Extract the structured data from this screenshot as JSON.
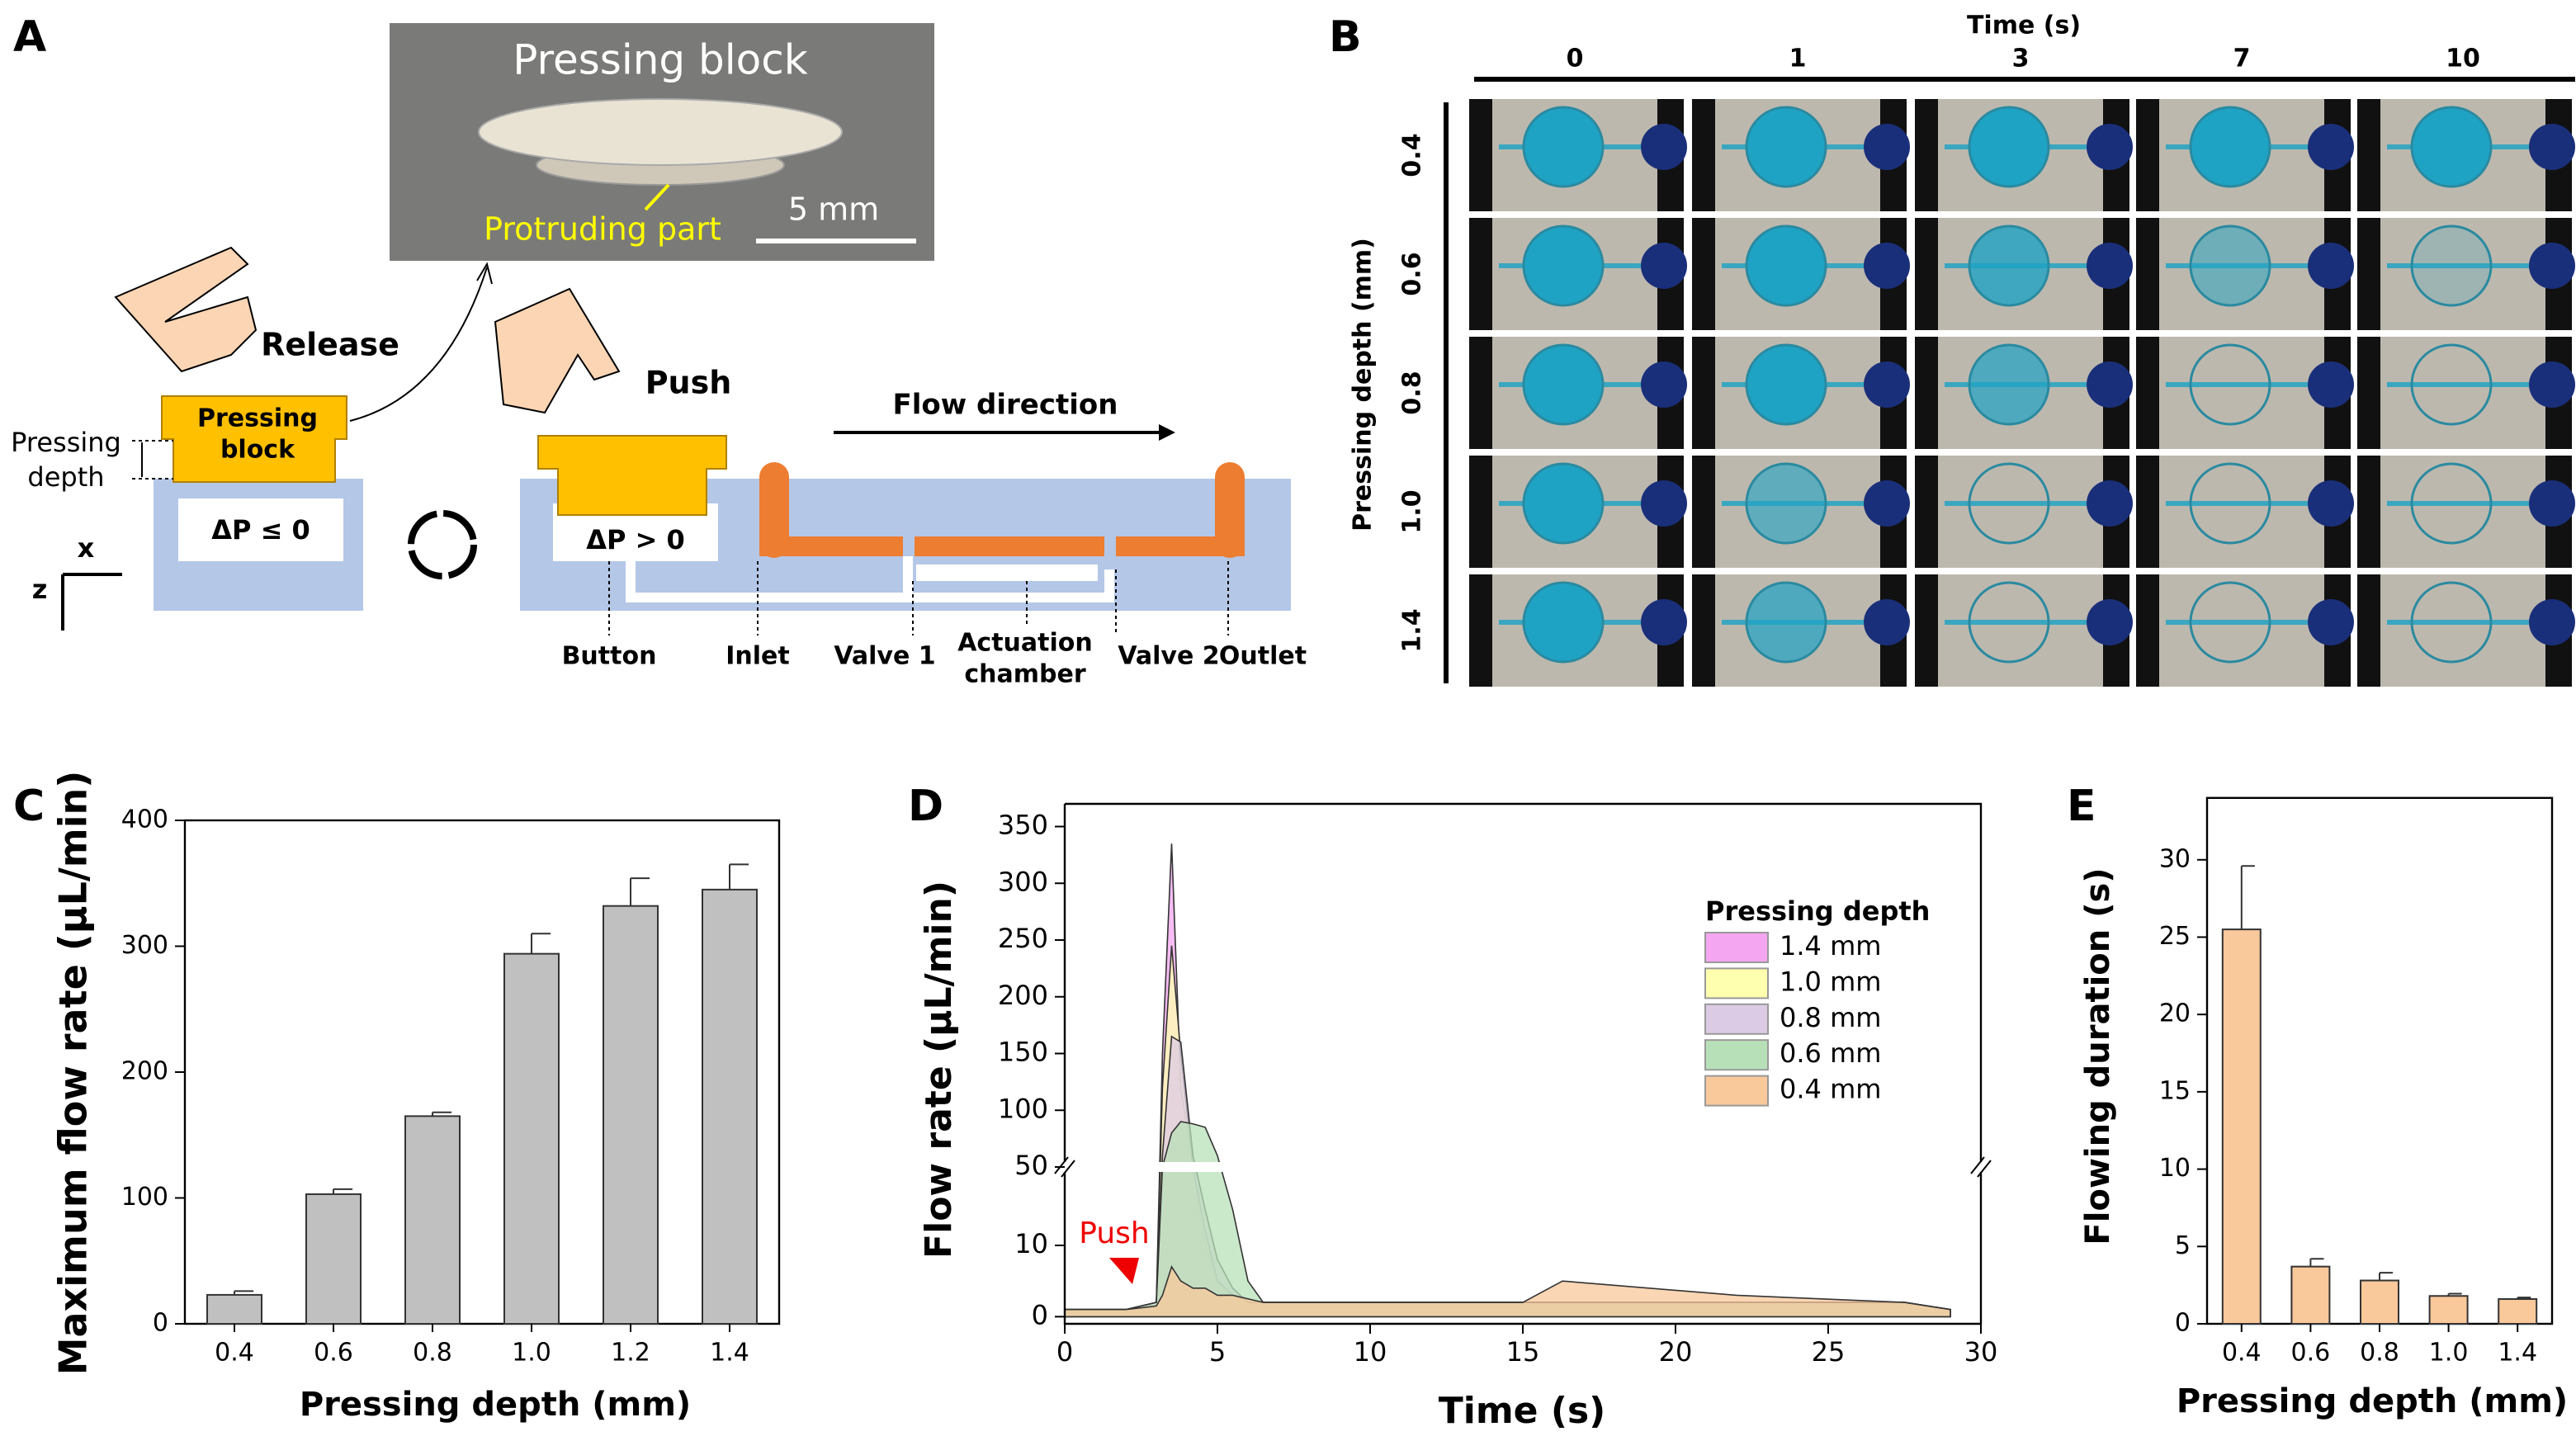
{
  "panel_labels": [
    "A",
    "B",
    "C",
    "D",
    "E"
  ],
  "diagram": {
    "photo_title": "Pressing block",
    "protruding": "Protruding part",
    "scale": "5 mm",
    "release": "Release",
    "block_label": [
      "Pressing",
      "block"
    ],
    "depth_label": [
      "Pressing",
      "depth"
    ],
    "dp_release": "ΔP ≤ 0",
    "push": "Push",
    "dp_push": "ΔP > 0",
    "flow": "Flow direction",
    "axis_x": "x",
    "axis_z": "z",
    "button": "Button",
    "inlet": "Inlet",
    "valve1": "Valve 1",
    "chamber": [
      "Actuation",
      "chamber"
    ],
    "valve2": "Valve 2",
    "outlet": "Outlet"
  },
  "photo_grid": {
    "title": "Time (s)",
    "columns": [
      "0",
      "1",
      "3",
      "7",
      "10"
    ],
    "row_title": "Pressing depth (mm)",
    "rows": [
      "0.4",
      "0.6",
      "0.8",
      "1.0",
      "1.4"
    ]
  },
  "chart_data": [
    {
      "type": "bar",
      "ylabel": "Maximum flow rate (μL/min)",
      "xlabel": "Pressing depth (mm)",
      "categories": [
        "0.4",
        "0.6",
        "0.8",
        "1.0",
        "1.2",
        "1.4"
      ],
      "values": [
        23,
        103,
        165,
        294,
        332,
        345
      ],
      "errors": [
        3,
        4,
        3,
        16,
        22,
        20
      ],
      "color": "#c0c0c0",
      "ylim": [
        0,
        400
      ],
      "yticks": [
        0,
        100,
        200,
        300,
        400
      ]
    },
    {
      "type": "area",
      "ylabel": "Flow rate (μL/min)",
      "xlabel": "Time (s)",
      "legend_title": "Pressing depth",
      "annotation": "Push",
      "x": [
        0,
        2,
        3,
        3.2,
        3.5,
        3.8,
        4.2,
        4.6,
        5,
        5.5,
        6,
        6.5,
        8,
        15,
        16.3,
        22,
        27.5,
        29
      ],
      "series": [
        {
          "name": "1.4 mm",
          "color": "#f4a6f0",
          "values": [
            1,
            1,
            2,
            150,
            335,
            120,
            30,
            10,
            5,
            3,
            2,
            2,
            2,
            2,
            2,
            2,
            2,
            1
          ]
        },
        {
          "name": "1.0 mm",
          "color": "#ffffb0",
          "values": [
            1,
            1,
            2,
            120,
            245,
            150,
            40,
            12,
            5,
            3,
            2,
            2,
            2,
            2,
            2,
            2,
            2,
            1
          ]
        },
        {
          "name": "0.8 mm",
          "color": "#dccbe4",
          "values": [
            1,
            1,
            2,
            60,
            165,
            160,
            60,
            15,
            8,
            4,
            2,
            2,
            2,
            2,
            2,
            2,
            2,
            1
          ]
        },
        {
          "name": "0.6 mm",
          "color": "#b8e0b8",
          "values": [
            1,
            1,
            2,
            30,
            80,
            90,
            88,
            85,
            60,
            15,
            5,
            2,
            2,
            2,
            2,
            2,
            2,
            1
          ]
        },
        {
          "name": "0.4 mm",
          "color": "#f9c89b",
          "values": [
            1,
            1,
            1.5,
            3,
            7,
            5,
            4,
            4,
            3,
            3,
            2.5,
            2,
            2,
            2,
            5,
            3,
            2,
            1
          ]
        }
      ],
      "xlim": [
        0,
        30
      ],
      "xticks": [
        0,
        5,
        10,
        15,
        20,
        25,
        30
      ],
      "ylim": [
        -1,
        370
      ],
      "axis_break": [
        21,
        50
      ],
      "yticks": [
        0,
        10,
        50,
        100,
        150,
        200,
        250,
        300,
        350
      ]
    },
    {
      "type": "bar",
      "ylabel": "Flowing duration (s)",
      "xlabel": "Pressing depth (mm)",
      "categories": [
        "0.4",
        "0.6",
        "0.8",
        "1.0",
        "1.4"
      ],
      "values": [
        25.5,
        3.7,
        2.8,
        1.8,
        1.6
      ],
      "errors": [
        4.1,
        0.5,
        0.5,
        0.15,
        0.1
      ],
      "color": "#f9c89b",
      "ylim": [
        0,
        34
      ],
      "yticks": [
        0,
        5,
        10,
        15,
        20,
        25,
        30
      ]
    }
  ]
}
